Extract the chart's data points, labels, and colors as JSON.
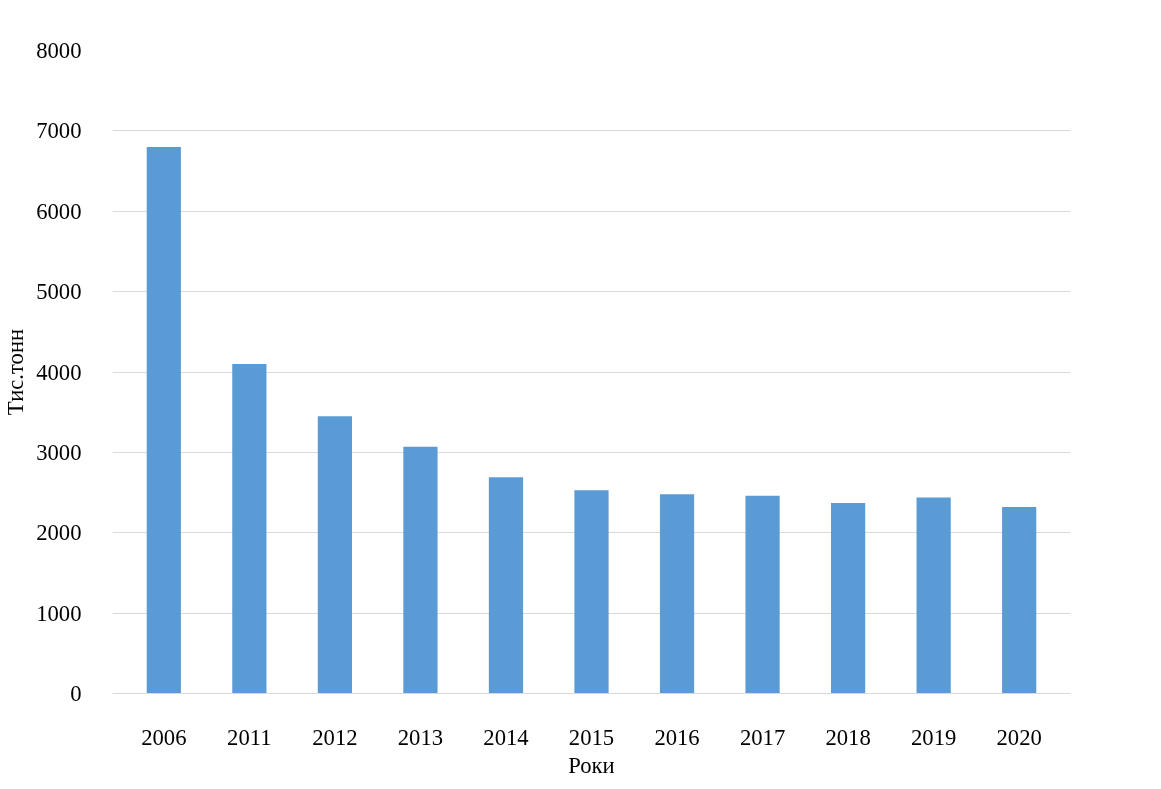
{
  "chart_data": {
    "type": "bar",
    "xlabel": "Роки",
    "ylabel": "Тис.тонн",
    "categories": [
      "2006",
      "2011",
      "2012",
      "2013",
      "2014",
      "2015",
      "2016",
      "2017",
      "2018",
      "2019",
      "2020"
    ],
    "values": [
      6800,
      4100,
      3450,
      3070,
      2690,
      2530,
      2480,
      2460,
      2370,
      2440,
      2320
    ],
    "color": "#5b9bd5",
    "ylim": [
      0,
      8000
    ],
    "yticks": [
      0,
      1000,
      2000,
      3000,
      4000,
      5000,
      6000,
      7000,
      8000
    ],
    "grid": "y"
  }
}
